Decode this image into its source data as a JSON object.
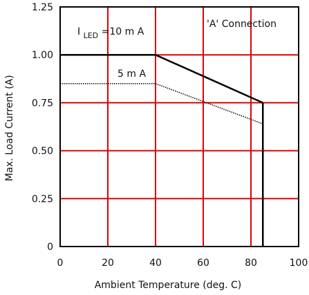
{
  "chart_data": {
    "type": "line",
    "xlabel": "Ambient Temperature (deg. C)",
    "ylabel": "Max. Load Current (A)",
    "xlim": [
      0,
      100
    ],
    "ylim": [
      0,
      1.25
    ],
    "x_ticks": [
      "0",
      "20",
      "40",
      "60",
      "80",
      "100"
    ],
    "y_ticks": [
      "0",
      "0.25",
      "0.50",
      "0.75",
      "1.00",
      "1.25"
    ],
    "x_tick_values": [
      0,
      20,
      40,
      60,
      80,
      100
    ],
    "y_tick_values": [
      0,
      0.25,
      0.5,
      0.75,
      1.0,
      1.25
    ],
    "grid": true,
    "grid_color": "#e00000",
    "series": [
      {
        "name": "I LED=10 mA",
        "style": "solid",
        "color": "#000000",
        "points": [
          [
            0,
            1.0
          ],
          [
            40,
            1.0
          ],
          [
            85,
            0.75
          ],
          [
            85,
            0
          ]
        ]
      },
      {
        "name": "5 mA",
        "style": "dotted",
        "color": "#000000",
        "points": [
          [
            0,
            0.85
          ],
          [
            40,
            0.85
          ],
          [
            85,
            0.64
          ]
        ]
      }
    ],
    "annotations": {
      "led_prefix": "I",
      "led_sub": "LED",
      "led_value": "=10 m A",
      "five_ma": "5 m A",
      "connection": "'A' Connection"
    }
  }
}
